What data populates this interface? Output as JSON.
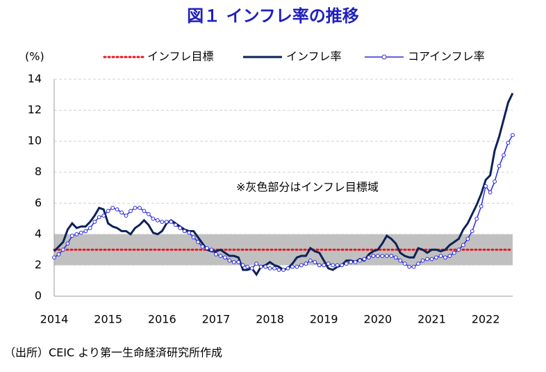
{
  "chart_data": {
    "type": "line",
    "title": "図１ インフレ率の推移",
    "ylabel": "(%)",
    "annotation": "※灰色部分はインフレ目標域",
    "source": "（出所）CEIC より第一生命経済研究所作成",
    "categories": [
      "2014",
      null,
      null,
      null,
      null,
      null,
      null,
      null,
      null,
      null,
      null,
      null,
      "2015",
      null,
      null,
      null,
      null,
      null,
      null,
      null,
      null,
      null,
      null,
      null,
      "2016",
      null,
      null,
      null,
      null,
      null,
      null,
      null,
      null,
      null,
      null,
      null,
      "2017",
      null,
      null,
      null,
      null,
      null,
      null,
      null,
      null,
      null,
      null,
      null,
      "2018",
      null,
      null,
      null,
      null,
      null,
      null,
      null,
      null,
      null,
      null,
      null,
      "2019",
      null,
      null,
      null,
      null,
      null,
      null,
      null,
      null,
      null,
      null,
      null,
      "2020",
      null,
      null,
      null,
      null,
      null,
      null,
      null,
      null,
      null,
      null,
      null,
      "2021",
      null,
      null,
      null,
      null,
      null,
      null,
      null,
      null,
      null,
      null,
      null,
      "2022",
      null,
      null,
      null,
      null,
      null,
      null
    ],
    "target": {
      "name": "インフレ目標",
      "value": 3,
      "color": "#e8141c"
    },
    "band": [
      2,
      4
    ],
    "band_color": "#c0c0c0",
    "series": [
      {
        "name": "インフレ率",
        "color": "#0d2157",
        "marker": false,
        "values": [
          2.9,
          3.2,
          3.5,
          4.3,
          4.7,
          4.4,
          4.5,
          4.5,
          4.8,
          5.2,
          5.7,
          5.6,
          4.7,
          4.5,
          4.4,
          4.2,
          4.2,
          4.0,
          4.4,
          4.6,
          4.9,
          4.6,
          4.1,
          4.0,
          4.2,
          4.7,
          4.9,
          4.7,
          4.5,
          4.3,
          4.2,
          4.2,
          3.8,
          3.4,
          3.0,
          2.9,
          2.9,
          3.0,
          2.8,
          2.6,
          2.6,
          2.5,
          1.7,
          1.7,
          1.8,
          1.4,
          1.9,
          2.0,
          2.2,
          2.0,
          1.9,
          1.7,
          1.8,
          2.1,
          2.5,
          2.6,
          2.6,
          3.1,
          2.9,
          2.8,
          2.3,
          1.8,
          1.7,
          1.9,
          2.0,
          2.3,
          2.3,
          2.2,
          2.4,
          2.3,
          2.7,
          2.9,
          3.0,
          3.4,
          3.9,
          3.7,
          3.4,
          2.8,
          2.6,
          2.5,
          2.5,
          3.1,
          3.0,
          2.8,
          3.0,
          3.0,
          2.9,
          3.0,
          3.3,
          3.5,
          3.7,
          4.3,
          4.7,
          5.3,
          5.9,
          6.6,
          7.5,
          7.8,
          9.4,
          10.3,
          11.4,
          12.5,
          13.1
        ]
      },
      {
        "name": "コアインフレ率",
        "color": "#2b2bdc",
        "marker": true,
        "values": [
          2.5,
          2.7,
          3.0,
          3.4,
          3.9,
          4.0,
          4.1,
          4.2,
          4.4,
          4.8,
          5.1,
          5.2,
          5.5,
          5.7,
          5.6,
          5.4,
          5.2,
          5.5,
          5.7,
          5.7,
          5.5,
          5.3,
          5.0,
          4.9,
          4.8,
          4.8,
          4.8,
          4.6,
          4.4,
          4.2,
          4.1,
          3.8,
          3.5,
          3.2,
          3.1,
          3.0,
          2.7,
          2.6,
          2.5,
          2.3,
          2.2,
          2.2,
          2.0,
          1.9,
          1.8,
          2.1,
          1.9,
          1.9,
          1.8,
          1.8,
          1.7,
          1.7,
          1.8,
          1.9,
          1.9,
          2.0,
          2.1,
          2.3,
          2.2,
          2.0,
          2.0,
          2.1,
          2.0,
          2.0,
          2.0,
          2.1,
          2.2,
          2.2,
          2.3,
          2.4,
          2.5,
          2.6,
          2.6,
          2.6,
          2.6,
          2.6,
          2.5,
          2.3,
          2.1,
          1.9,
          1.9,
          2.1,
          2.3,
          2.4,
          2.4,
          2.5,
          2.6,
          2.5,
          2.6,
          2.8,
          3.0,
          3.3,
          3.7,
          4.2,
          5.0,
          5.8,
          7.1,
          6.7,
          7.4,
          8.4,
          9.1,
          9.9,
          10.4
        ]
      }
    ],
    "ylim": [
      0,
      14
    ],
    "yticks": [
      0,
      2,
      4,
      6,
      8,
      10,
      12,
      14
    ],
    "grid": true
  }
}
